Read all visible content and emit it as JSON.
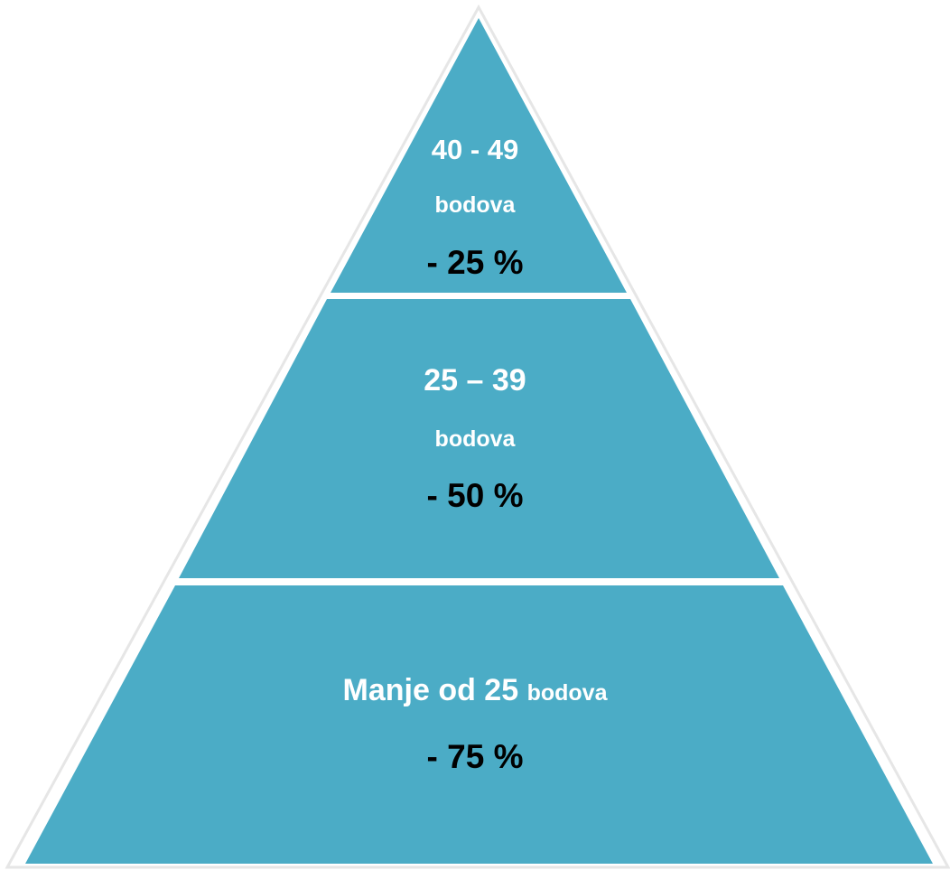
{
  "colors": {
    "fill": "#4BACC6",
    "separator": "#ffffff",
    "outline": "#e2e2e2",
    "light_text": "#ffffff",
    "dark_text": "#000000"
  },
  "tiers": [
    {
      "range": "40 - 49",
      "unit": "bodova",
      "reduction": "- 25 %"
    },
    {
      "range": "25 – 39",
      "unit": "bodova",
      "reduction": "- 50 %"
    },
    {
      "range": "Manje od 25",
      "unit": "bodova",
      "reduction": "- 75 %"
    }
  ]
}
